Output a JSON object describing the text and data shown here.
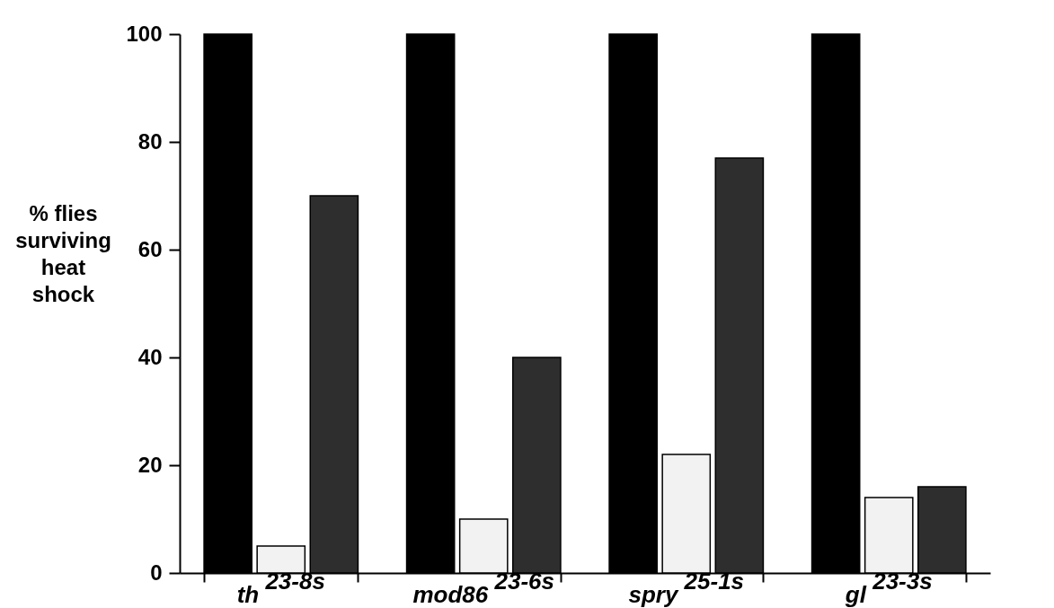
{
  "chart_data": {
    "type": "bar",
    "ylabel": "% flies\nsurviving\nheat\nshock",
    "categories": [
      "th $^{23-8s}$",
      "mod86 $^{23-6s}$",
      "spry $^{25-1s}$",
      "gl $^{23-3s}$"
    ],
    "series": [
      {
        "color": "#000000",
        "values": [
          100,
          100,
          100,
          100
        ]
      },
      {
        "color": "#f2f2f2",
        "values": [
          5,
          10,
          22,
          14
        ]
      },
      {
        "color": "#2e2e2e",
        "values": [
          70,
          40,
          77,
          16
        ]
      }
    ],
    "ylim": [
      0,
      100
    ],
    "yticks": [
      0,
      20,
      40,
      60,
      80,
      100
    ],
    "grid": false,
    "legend": false
  }
}
